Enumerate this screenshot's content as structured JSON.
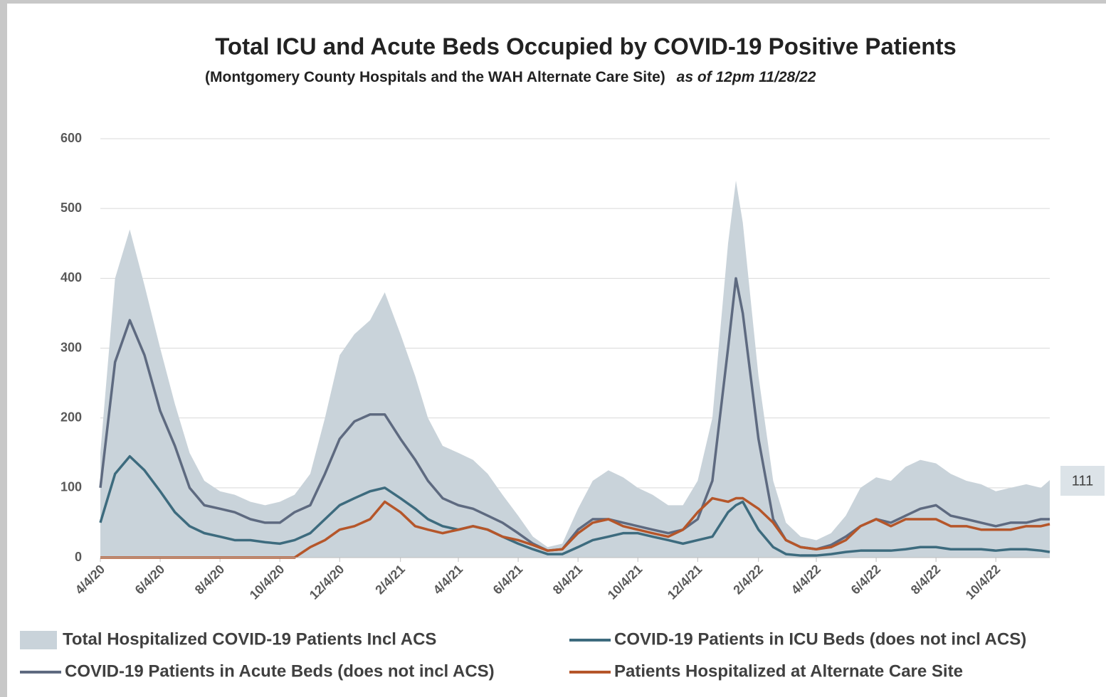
{
  "chart_data": {
    "type": "line",
    "title": "Total ICU and Acute Beds Occupied by COVID-19 Positive Patients",
    "subtitle": "(Montgomery County Hospitals and the WAH Alternate Care Site)",
    "subtitle_note": "as of  12pm 11/28/22",
    "x": [
      "4/4/20",
      "4/19/20",
      "5/4/20",
      "5/19/20",
      "6/4/20",
      "6/19/20",
      "7/4/20",
      "7/19/20",
      "8/4/20",
      "8/19/20",
      "9/4/20",
      "9/19/20",
      "10/4/20",
      "10/19/20",
      "11/4/20",
      "11/19/20",
      "12/4/20",
      "12/19/20",
      "1/4/21",
      "1/19/21",
      "2/4/21",
      "2/19/21",
      "3/4/21",
      "3/19/21",
      "4/4/21",
      "4/19/21",
      "5/4/21",
      "5/19/21",
      "6/4/21",
      "6/19/21",
      "7/4/21",
      "7/19/21",
      "8/4/21",
      "8/19/21",
      "9/4/21",
      "9/19/21",
      "10/4/21",
      "10/19/21",
      "11/4/21",
      "11/19/21",
      "12/4/21",
      "12/19/21",
      "1/4/22",
      "1/12/22",
      "1/19/22",
      "2/4/22",
      "2/19/22",
      "3/4/22",
      "3/19/22",
      "4/4/22",
      "4/19/22",
      "5/4/22",
      "5/19/22",
      "6/4/22",
      "6/19/22",
      "7/4/22",
      "7/19/22",
      "8/4/22",
      "8/19/22",
      "9/4/22",
      "9/19/22",
      "10/4/22",
      "10/19/22",
      "11/4/22",
      "11/19/22",
      "11/28/22"
    ],
    "series": [
      {
        "name": "Total Hospitalized COVID-19 Patients Incl ACS",
        "color": "#c9d3da",
        "style": "area",
        "values": [
          150,
          400,
          470,
          390,
          300,
          220,
          150,
          110,
          95,
          90,
          80,
          75,
          80,
          90,
          120,
          200,
          290,
          320,
          340,
          380,
          320,
          260,
          200,
          160,
          150,
          140,
          120,
          90,
          60,
          30,
          15,
          20,
          70,
          110,
          125,
          115,
          100,
          90,
          75,
          75,
          110,
          200,
          450,
          540,
          480,
          260,
          110,
          50,
          30,
          25,
          35,
          60,
          100,
          115,
          110,
          130,
          140,
          135,
          120,
          110,
          105,
          95,
          100,
          105,
          100,
          111
        ]
      },
      {
        "name": "COVID-19 Patients in  ICU Beds (does not incl ACS)",
        "color": "#3d6b7e",
        "style": "line",
        "values": [
          50,
          120,
          145,
          125,
          95,
          65,
          45,
          35,
          30,
          25,
          25,
          22,
          20,
          25,
          35,
          55,
          75,
          85,
          95,
          100,
          85,
          70,
          55,
          45,
          40,
          45,
          40,
          30,
          20,
          12,
          5,
          5,
          15,
          25,
          30,
          35,
          35,
          30,
          25,
          20,
          25,
          30,
          65,
          75,
          80,
          40,
          15,
          5,
          3,
          3,
          5,
          8,
          10,
          10,
          10,
          12,
          15,
          15,
          12,
          12,
          12,
          10,
          12,
          12,
          10,
          8
        ]
      },
      {
        "name": "COVID-19 Patients in Acute Beds (does not incl ACS)",
        "color": "#5e6a80",
        "style": "line",
        "values": [
          100,
          280,
          340,
          290,
          210,
          160,
          100,
          75,
          70,
          65,
          55,
          50,
          50,
          65,
          75,
          120,
          170,
          195,
          205,
          205,
          170,
          140,
          110,
          85,
          75,
          70,
          60,
          50,
          35,
          20,
          10,
          12,
          40,
          55,
          55,
          50,
          45,
          40,
          35,
          40,
          55,
          110,
          300,
          400,
          350,
          170,
          55,
          25,
          15,
          12,
          18,
          30,
          45,
          55,
          50,
          60,
          70,
          75,
          60,
          55,
          50,
          45,
          50,
          50,
          55,
          55
        ]
      },
      {
        "name": "Patients Hospitalized at Alternate Care Site",
        "color": "#b5562a",
        "style": "line",
        "values": [
          0,
          0,
          0,
          0,
          0,
          0,
          0,
          0,
          0,
          0,
          0,
          0,
          0,
          0,
          15,
          25,
          40,
          45,
          55,
          80,
          65,
          45,
          40,
          35,
          40,
          45,
          40,
          30,
          25,
          18,
          10,
          12,
          35,
          50,
          55,
          45,
          40,
          35,
          30,
          40,
          65,
          85,
          80,
          85,
          85,
          70,
          50,
          25,
          15,
          12,
          15,
          25,
          45,
          55,
          45,
          55,
          55,
          55,
          45,
          45,
          40,
          40,
          40,
          45,
          45,
          48
        ]
      }
    ],
    "xlim": [
      "4/4/20",
      "11/28/22"
    ],
    "xticks": [
      "4/4/20",
      "6/4/20",
      "8/4/20",
      "10/4/20",
      "12/4/20",
      "2/4/21",
      "4/4/21",
      "6/4/21",
      "8/4/21",
      "10/4/21",
      "12/4/21",
      "2/4/22",
      "4/4/22",
      "6/4/22",
      "8/4/22",
      "10/4/22"
    ],
    "ylim": [
      0,
      600
    ],
    "yticks": [
      0,
      100,
      200,
      300,
      400,
      500,
      600
    ],
    "grid": true
  }
}
